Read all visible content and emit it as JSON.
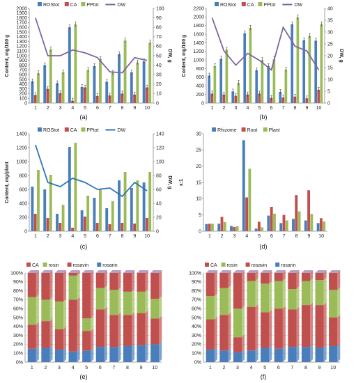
{
  "colors": {
    "blue": "#4a7ebb",
    "red": "#c0504d",
    "green": "#9bbb59",
    "purple": "#8064a2",
    "line_blue": "#2e74b5"
  },
  "chart_data": [
    {
      "panel": "(a)",
      "type": "bar",
      "categories": [
        "1",
        "2",
        "3",
        "4",
        "5",
        "6",
        "7",
        "8",
        "9",
        "10"
      ],
      "ylabel": "Content, mg/100 g",
      "y2label": "DW, g",
      "ylim": [
        0,
        2000
      ],
      "y2lim": [
        0,
        100
      ],
      "yticks": [
        "0",
        "100",
        "200",
        "300",
        "400",
        "500",
        "600",
        "700",
        "800",
        "900",
        "1000",
        "1100",
        "1200",
        "1300",
        "1400",
        "1500",
        "1600",
        "1700",
        "1800",
        "1900",
        "2000"
      ],
      "y2ticks": [
        "0",
        "10",
        "20",
        "30",
        "40",
        "50",
        "60",
        "70",
        "80",
        "90",
        "100"
      ],
      "error_bars": true,
      "series": [
        {
          "name": "ROStot",
          "values": [
            460,
            800,
            420,
            1600,
            340,
            780,
            450,
            1030,
            650,
            880
          ]
        },
        {
          "name": "CA",
          "values": [
            170,
            300,
            210,
            50,
            330,
            150,
            160,
            200,
            180,
            330
          ]
        },
        {
          "name": "PPtot",
          "values": [
            630,
            1130,
            650,
            1660,
            700,
            930,
            640,
            1320,
            860,
            1280
          ]
        },
        {
          "name": "DW",
          "type": "line",
          "axis": "secondary",
          "values": [
            90,
            50,
            50,
            56,
            53,
            48,
            33,
            32,
            48,
            45
          ]
        }
      ]
    },
    {
      "panel": "(b)",
      "type": "bar",
      "categories": [
        "1",
        "2",
        "3",
        "4",
        "5",
        "6",
        "7",
        "8",
        "9",
        "10"
      ],
      "ylabel": "Content, mg/100 g",
      "y2label": "DW, g",
      "ylim": [
        0,
        2200
      ],
      "y2lim": [
        0,
        40
      ],
      "yticks": [
        "0",
        "200",
        "400",
        "600",
        "800",
        "1000",
        "1200",
        "1400",
        "1600",
        "1800",
        "2000",
        "2200"
      ],
      "y2ticks": [
        "0",
        "5",
        "10",
        "15",
        "20",
        "25",
        "30",
        "35",
        "40"
      ],
      "error_bars": true,
      "series": [
        {
          "name": "ROStot",
          "values": [
            640,
            1030,
            270,
            1620,
            760,
            860,
            260,
            1830,
            1460,
            1450
          ]
        },
        {
          "name": "CA",
          "values": [
            220,
            200,
            170,
            200,
            220,
            120,
            130,
            150,
            110,
            310
          ]
        },
        {
          "name": "PPtot",
          "values": [
            860,
            1240,
            470,
            1750,
            1000,
            1020,
            780,
            1990,
            1560,
            1830
          ]
        },
        {
          "name": "DW",
          "type": "line",
          "axis": "secondary",
          "values": [
            36,
            22,
            16,
            21,
            18,
            14,
            32,
            24,
            22,
            14
          ]
        }
      ]
    },
    {
      "panel": "(c)",
      "type": "bar",
      "categories": [
        "1",
        "2",
        "3",
        "4",
        "5",
        "6",
        "7",
        "8",
        "9",
        "10"
      ],
      "ylabel": "Content, mg/plant",
      "y2label": "DW, g",
      "ylim": [
        0,
        1400
      ],
      "y2lim": [
        0,
        140
      ],
      "yticks": [
        "0",
        "200",
        "400",
        "600",
        "800",
        "1000",
        "1200",
        "1400"
      ],
      "y2ticks": [
        "0",
        "20",
        "40",
        "60",
        "80",
        "100",
        "120",
        "140"
      ],
      "series": [
        {
          "name": "ROStot",
          "values": [
            640,
            600,
            250,
            1210,
            300,
            480,
            330,
            730,
            620,
            700
          ]
        },
        {
          "name": "CA",
          "values": [
            250,
            190,
            120,
            50,
            210,
            120,
            100,
            120,
            110,
            190
          ]
        },
        {
          "name": "PPtot",
          "values": [
            880,
            810,
            380,
            1270,
            510,
            600,
            430,
            850,
            730,
            850
          ]
        },
        {
          "name": "DW",
          "type": "line",
          "axis": "secondary",
          "values": [
            124,
            70,
            64,
            76,
            70,
            60,
            62,
            50,
            70,
            58
          ]
        }
      ]
    },
    {
      "panel": "(d)",
      "type": "bar",
      "categories": [
        "1",
        "2",
        "3",
        "4",
        "5",
        "6",
        "7",
        "8",
        "9",
        "10"
      ],
      "ylabel": "x:1",
      "ylim": [
        0,
        30
      ],
      "yticks": [
        "0",
        "5",
        "10",
        "15",
        "20",
        "25",
        "30"
      ],
      "series": [
        {
          "name": "Rhizome",
          "values": [
            2.2,
            2.3,
            1.6,
            28.0,
            0.8,
            4.8,
            2.5,
            3.8,
            3.3,
            2.5
          ]
        },
        {
          "name": "Root",
          "values": [
            2.3,
            4.4,
            1.3,
            10.4,
            2.9,
            7.5,
            5.0,
            11.1,
            12.6,
            4.0
          ]
        },
        {
          "name": "Plant",
          "values": [
            2.3,
            2.8,
            1.5,
            19.2,
            1.2,
            5.4,
            3.3,
            6.1,
            5.3,
            3.0
          ]
        }
      ]
    },
    {
      "panel": "(e)",
      "type": "bar",
      "stacked": "percent",
      "categories": [
        "1",
        "2",
        "3",
        "4",
        "5",
        "6",
        "7",
        "8",
        "9",
        "10"
      ],
      "ylim": [
        0,
        100
      ],
      "yticks": [
        "0%",
        "10%",
        "20%",
        "30%",
        "40%",
        "50%",
        "60%",
        "70%",
        "80%",
        "90%",
        "100%"
      ],
      "series": [
        {
          "name": "rosarin",
          "values": [
            15,
            16,
            14,
            12,
            13,
            17,
            17,
            18,
            19,
            20
          ]
        },
        {
          "name": "rosavin",
          "values": [
            27,
            30,
            23,
            58,
            22,
            42,
            36,
            35,
            36,
            29
          ]
        },
        {
          "name": "rosin",
          "values": [
            31,
            24,
            31,
            27,
            14,
            24,
            28,
            26,
            24,
            22
          ]
        },
        {
          "name": "CA",
          "values": [
            27,
            30,
            32,
            3,
            51,
            17,
            19,
            21,
            21,
            29
          ]
        }
      ]
    },
    {
      "panel": "(f)",
      "type": "bar",
      "stacked": "percent",
      "categories": [
        "1",
        "2",
        "3",
        "4",
        "5",
        "6",
        "7",
        "8",
        "9",
        "10"
      ],
      "ylim": [
        0,
        100
      ],
      "yticks": [
        "0%",
        "10%",
        "20%",
        "30%",
        "40%",
        "50%",
        "60%",
        "70%",
        "80%",
        "90%",
        "100%"
      ],
      "series": [
        {
          "name": "rosarin",
          "values": [
            14,
            13,
            11,
            13,
            16,
            15,
            17,
            17,
            16,
            18
          ]
        },
        {
          "name": "rosavin",
          "values": [
            34,
            40,
            17,
            49,
            40,
            45,
            42,
            47,
            48,
            32
          ]
        },
        {
          "name": "rosin",
          "values": [
            26,
            30,
            32,
            29,
            32,
            31,
            23,
            27,
            28,
            31
          ]
        },
        {
          "name": "CA",
          "values": [
            26,
            17,
            40,
            9,
            12,
            9,
            18,
            9,
            8,
            19
          ]
        }
      ]
    }
  ]
}
